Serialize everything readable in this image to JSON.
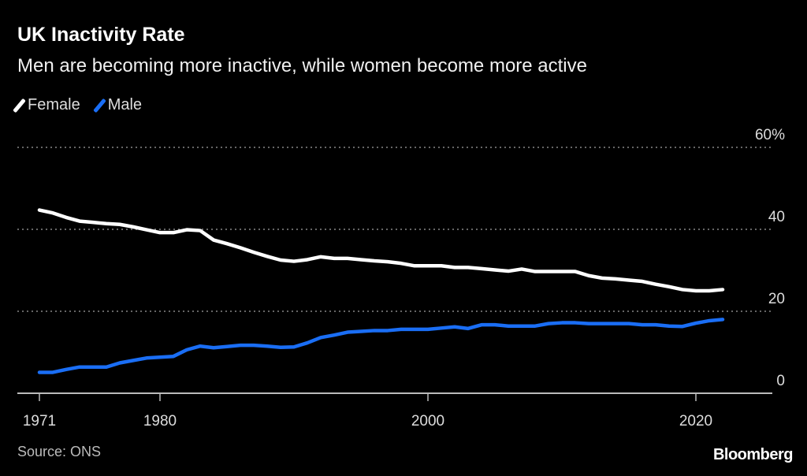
{
  "chart_data": {
    "type": "line",
    "title": "UK Inactivity Rate",
    "subtitle": "Men are becoming more inactive, while women become more active",
    "xlabel": "",
    "ylabel": "",
    "ylim": [
      0,
      60
    ],
    "xlim": [
      1970,
      2024
    ],
    "yticks": [
      {
        "value": 60,
        "label": "60%"
      },
      {
        "value": 40,
        "label": "40"
      },
      {
        "value": 20,
        "label": "20"
      },
      {
        "value": 0,
        "label": "0"
      }
    ],
    "xticks": [
      {
        "value": 1971,
        "label": "1971"
      },
      {
        "value": 1980,
        "label": "1980"
      },
      {
        "value": 2000,
        "label": "2000"
      },
      {
        "value": 2020,
        "label": "2020"
      }
    ],
    "grid": "horizontal dotted",
    "legend": "top-left",
    "x_start": 1971,
    "series": [
      {
        "name": "Female",
        "color": "#ffffff",
        "values": [
          44.7,
          44.0,
          42.9,
          42.0,
          41.7,
          41.4,
          41.2,
          40.6,
          39.9,
          39.2,
          39.2,
          39.9,
          39.7,
          37.4,
          36.5,
          35.5,
          34.4,
          33.4,
          32.5,
          32.2,
          32.6,
          33.3,
          32.9,
          32.9,
          32.6,
          32.3,
          32.1,
          31.7,
          31.1,
          31.1,
          31.1,
          30.7,
          30.7,
          30.4,
          30.1,
          29.8,
          30.3,
          29.7,
          29.7,
          29.7,
          29.7,
          28.7,
          28.1,
          27.9,
          27.6,
          27.3,
          26.6,
          26.0,
          25.3,
          25.0,
          25.0,
          25.3
        ]
      },
      {
        "name": "Male",
        "color": "#1a6ef5",
        "values": [
          5.1,
          5.1,
          5.8,
          6.4,
          6.4,
          6.4,
          7.4,
          8.0,
          8.6,
          8.8,
          9.0,
          10.6,
          11.5,
          11.1,
          11.4,
          11.7,
          11.7,
          11.5,
          11.2,
          11.3,
          12.3,
          13.6,
          14.2,
          14.9,
          15.1,
          15.3,
          15.3,
          15.6,
          15.6,
          15.6,
          15.9,
          16.2,
          15.8,
          16.7,
          16.7,
          16.4,
          16.4,
          16.4,
          17.0,
          17.2,
          17.2,
          17.0,
          17.0,
          17.0,
          17.0,
          16.7,
          16.7,
          16.4,
          16.3,
          17.1,
          17.7,
          18.0
        ]
      }
    ]
  },
  "footer": {
    "source": "Source: ONS",
    "brand": "Bloomberg"
  }
}
